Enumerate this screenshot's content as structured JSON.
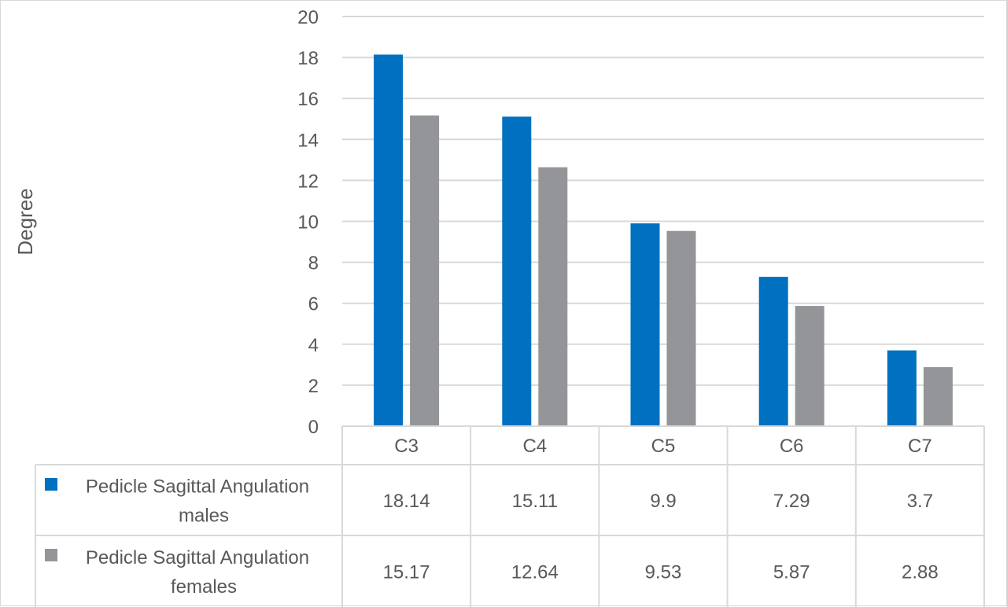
{
  "chart_data": {
    "type": "bar",
    "title": "",
    "xlabel": "",
    "ylabel": "Degree",
    "ylim": [
      0,
      20
    ],
    "yticks": [
      0,
      2,
      4,
      6,
      8,
      10,
      12,
      14,
      16,
      18,
      20
    ],
    "categories": [
      "C3",
      "C4",
      "C5",
      "C6",
      "C7"
    ],
    "grid": true,
    "legend": "data-table",
    "series": [
      {
        "name": "Pedicle Sagittal Angulation males",
        "name_lines": [
          "Pedicle Sagittal Angulation",
          "males"
        ],
        "color": "#0070c0",
        "values": [
          18.14,
          15.11,
          9.9,
          7.29,
          3.7
        ],
        "value_labels": [
          "18.14",
          "15.11",
          "9.9",
          "7.29",
          "3.7"
        ]
      },
      {
        "name": "Pedicle Sagittal Angulation females",
        "name_lines": [
          "Pedicle Sagittal Angulation",
          "females"
        ],
        "color": "#939598",
        "values": [
          15.17,
          12.64,
          9.53,
          5.87,
          2.88
        ],
        "value_labels": [
          "15.17",
          "12.64",
          "9.53",
          "5.87",
          "2.88"
        ]
      }
    ]
  }
}
